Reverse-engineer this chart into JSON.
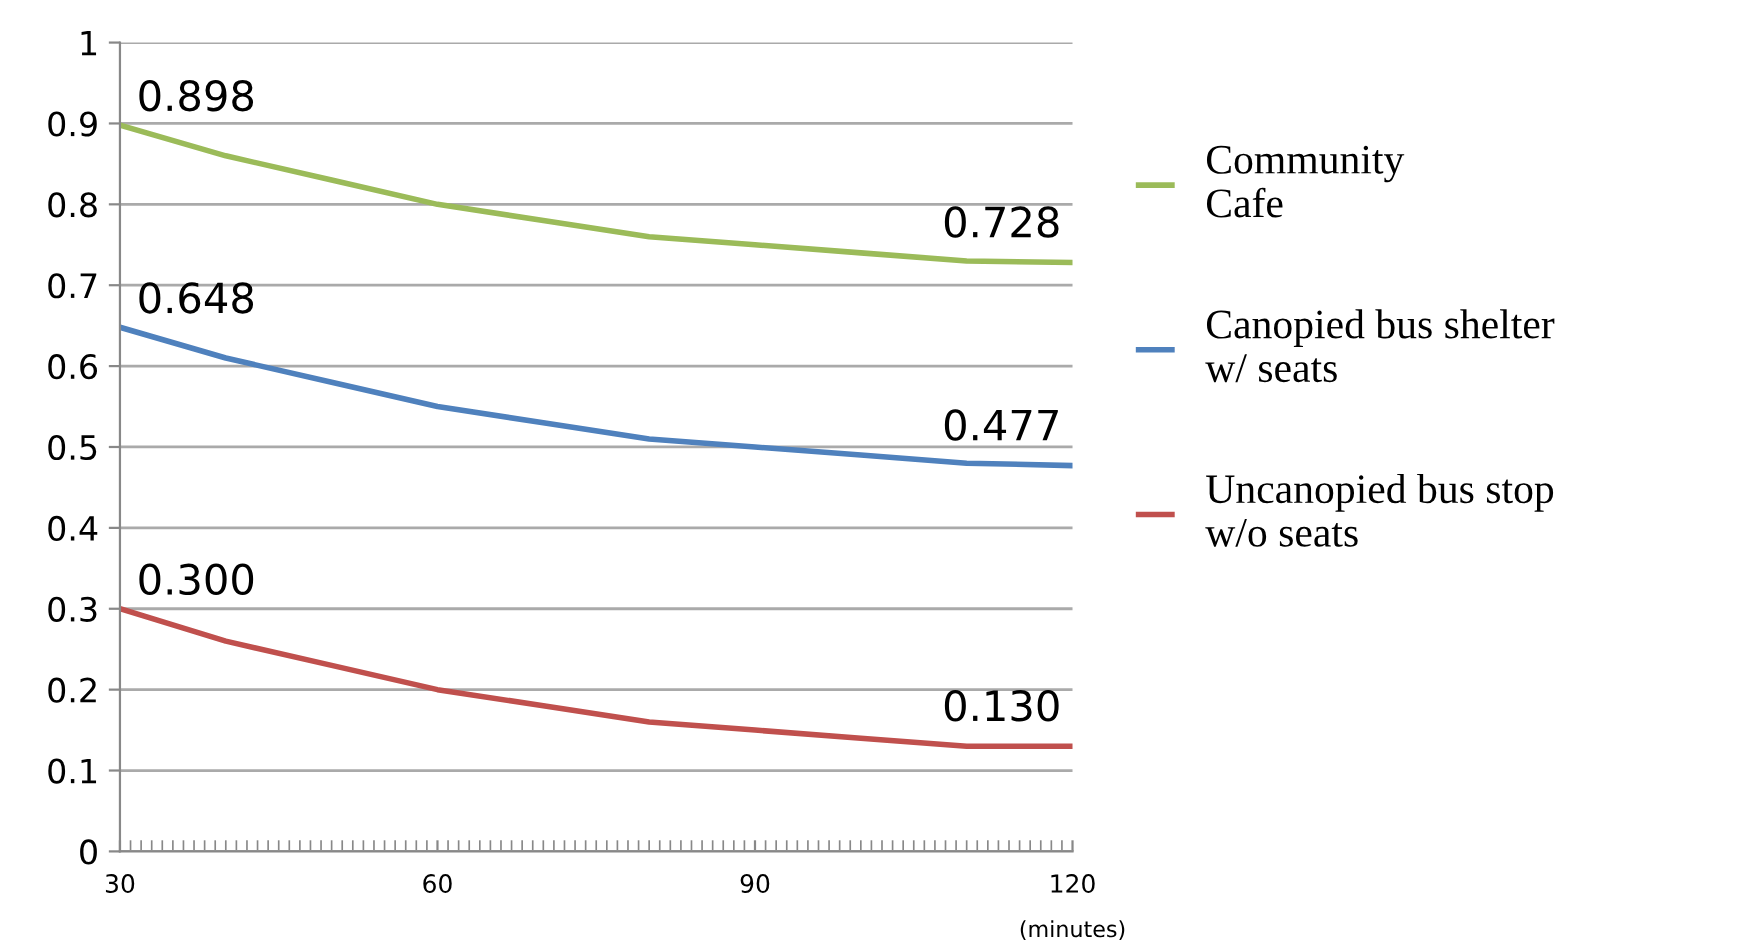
{
  "chart_data": {
    "type": "line",
    "xlabel": "(minutes)",
    "x": [
      30,
      40,
      50,
      60,
      70,
      80,
      90,
      100,
      110,
      120
    ],
    "series": [
      {
        "name": "Community\nCafe",
        "color": "#9bbb59",
        "values": [
          0.898,
          0.86,
          0.83,
          0.8,
          0.78,
          0.76,
          0.75,
          0.74,
          0.73,
          0.728
        ],
        "value_labels": [
          "0.898",
          null,
          null,
          null,
          null,
          null,
          null,
          null,
          null,
          "0.728"
        ]
      },
      {
        "name": "Canopied bus shelter\nw/ seats",
        "color": "#4f81bd",
        "values": [
          0.648,
          0.61,
          0.58,
          0.55,
          0.53,
          0.51,
          0.5,
          0.49,
          0.48,
          0.477
        ],
        "value_labels": [
          "0.648",
          null,
          null,
          null,
          null,
          null,
          null,
          null,
          null,
          "0.477"
        ]
      },
      {
        "name": "Uncanopied bus stop\nw/o seats",
        "color": "#c0504d",
        "values": [
          0.3,
          0.26,
          0.23,
          0.2,
          0.18,
          0.16,
          0.15,
          0.14,
          0.13,
          0.13
        ],
        "value_labels": [
          "0.300",
          null,
          null,
          null,
          null,
          null,
          null,
          null,
          null,
          "0.130"
        ]
      }
    ],
    "xlim": [
      30,
      120
    ],
    "xticks": [
      30,
      60,
      90,
      120
    ],
    "ylim": [
      0,
      1
    ],
    "yticks": [
      0,
      0.1,
      0.2,
      0.3,
      0.4,
      0.5,
      0.6,
      0.7,
      0.8,
      0.9,
      1
    ],
    "grid": "y",
    "legend": "right",
    "marker": "none",
    "line_style": "solid"
  }
}
